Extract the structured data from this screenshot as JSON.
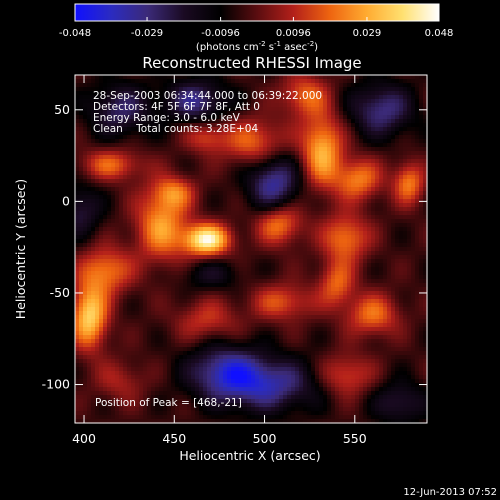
{
  "chart_data": {
    "type": "heatmap",
    "title": "Reconstructed RHESSI Image",
    "xlabel": "Heliocentric X (arcsec)",
    "ylabel": "Heliocentric Y (arcsec)",
    "xlim": [
      395,
      590
    ],
    "ylim": [
      -121,
      69
    ],
    "x_ticks": [
      400,
      450,
      500,
      550
    ],
    "y_ticks": [
      50,
      0,
      -50,
      -100
    ],
    "colorbar": {
      "range": [
        -0.048,
        0.048
      ],
      "tick_values": [
        -0.048,
        -0.029,
        -0.0096,
        0.0096,
        0.029,
        0.048
      ],
      "tick_labels": [
        "-0.048",
        "-0.029",
        "-0.0096",
        "0.0096",
        "0.029",
        "0.048"
      ],
      "units_prefix": "(photons cm",
      "units_exp1": "-2",
      "units_mid": " s",
      "units_exp2": "-1",
      "units_mid2": " asec",
      "units_exp3": "-2",
      "units_suffix": ")",
      "colormap": [
        "#1010ff",
        "#2b2bc0",
        "#3b2a78",
        "#1a0a22",
        "#000000",
        "#5a0d10",
        "#b3201a",
        "#ee6410",
        "#ffaa30",
        "#ffe070",
        "#ffffff"
      ]
    },
    "annotations": [
      "28-Sep-2003 06:34:44.000 to 06:39:22.000",
      "Detectors: 4F 5F 6F 7F 8F, Att 0",
      "Energy Range: 3.0 - 6.0 keV",
      "Clean    Total counts: 3.28E+04"
    ],
    "peak_label": "Position of Peak = [468,-21]",
    "peak": {
      "x": 468,
      "y": -21,
      "value": 0.048
    },
    "sources": [
      {
        "x": 468,
        "y": -21,
        "sx": 9,
        "sy": 6,
        "value": 0.048
      },
      {
        "x": 403,
        "y": -63,
        "sx": 7,
        "sy": 12,
        "value": 0.04
      },
      {
        "x": 412,
        "y": -38,
        "sx": 10,
        "sy": 9,
        "value": 0.026
      },
      {
        "x": 415,
        "y": 20,
        "sx": 12,
        "sy": 6,
        "value": 0.022
      },
      {
        "x": 443,
        "y": -13,
        "sx": 10,
        "sy": 14,
        "value": 0.03
      },
      {
        "x": 450,
        "y": 5,
        "sx": 8,
        "sy": 6,
        "value": 0.02
      },
      {
        "x": 468,
        "y": 35,
        "sx": 8,
        "sy": 6,
        "value": 0.018
      },
      {
        "x": 495,
        "y": 32,
        "sx": 12,
        "sy": 9,
        "value": 0.024
      },
      {
        "x": 508,
        "y": -12,
        "sx": 9,
        "sy": 8,
        "value": 0.028
      },
      {
        "x": 510,
        "y": -55,
        "sx": 12,
        "sy": 7,
        "value": 0.02
      },
      {
        "x": 522,
        "y": 58,
        "sx": 9,
        "sy": 8,
        "value": 0.022
      },
      {
        "x": 532,
        "y": 28,
        "sx": 8,
        "sy": 14,
        "value": 0.034
      },
      {
        "x": 552,
        "y": 12,
        "sx": 9,
        "sy": 8,
        "value": 0.026
      },
      {
        "x": 545,
        "y": -20,
        "sx": 9,
        "sy": 9,
        "value": 0.026
      },
      {
        "x": 540,
        "y": -45,
        "sx": 7,
        "sy": 9,
        "value": 0.022
      },
      {
        "x": 560,
        "y": -62,
        "sx": 10,
        "sy": 8,
        "value": 0.024
      },
      {
        "x": 545,
        "y": -95,
        "sx": 10,
        "sy": 8,
        "value": 0.02
      },
      {
        "x": 580,
        "y": 10,
        "sx": 6,
        "sy": 8,
        "value": 0.026
      },
      {
        "x": 468,
        "y": -65,
        "sx": 12,
        "sy": 8,
        "value": 0.016
      },
      {
        "x": 420,
        "y": -98,
        "sx": 10,
        "sy": 8,
        "value": 0.012
      },
      {
        "x": 505,
        "y": 10,
        "sx": 10,
        "sy": 12,
        "value": -0.03
      },
      {
        "x": 462,
        "y": 55,
        "sx": 12,
        "sy": 8,
        "value": -0.026
      },
      {
        "x": 420,
        "y": 50,
        "sx": 12,
        "sy": 10,
        "value": -0.022
      },
      {
        "x": 500,
        "y": -100,
        "sx": 20,
        "sy": 10,
        "value": -0.03
      },
      {
        "x": 478,
        "y": -92,
        "sx": 14,
        "sy": 10,
        "value": -0.026
      },
      {
        "x": 398,
        "y": -5,
        "sx": 8,
        "sy": 10,
        "value": -0.018
      },
      {
        "x": 470,
        "y": -40,
        "sx": 12,
        "sy": 6,
        "value": -0.012
      },
      {
        "x": 565,
        "y": 50,
        "sx": 12,
        "sy": 10,
        "value": -0.026
      },
      {
        "x": 575,
        "y": -110,
        "sx": 10,
        "sy": 8,
        "value": -0.018
      }
    ],
    "background": -0.004,
    "grid": false
  },
  "footer": {
    "date": "12-Jun-2013 07:52"
  }
}
